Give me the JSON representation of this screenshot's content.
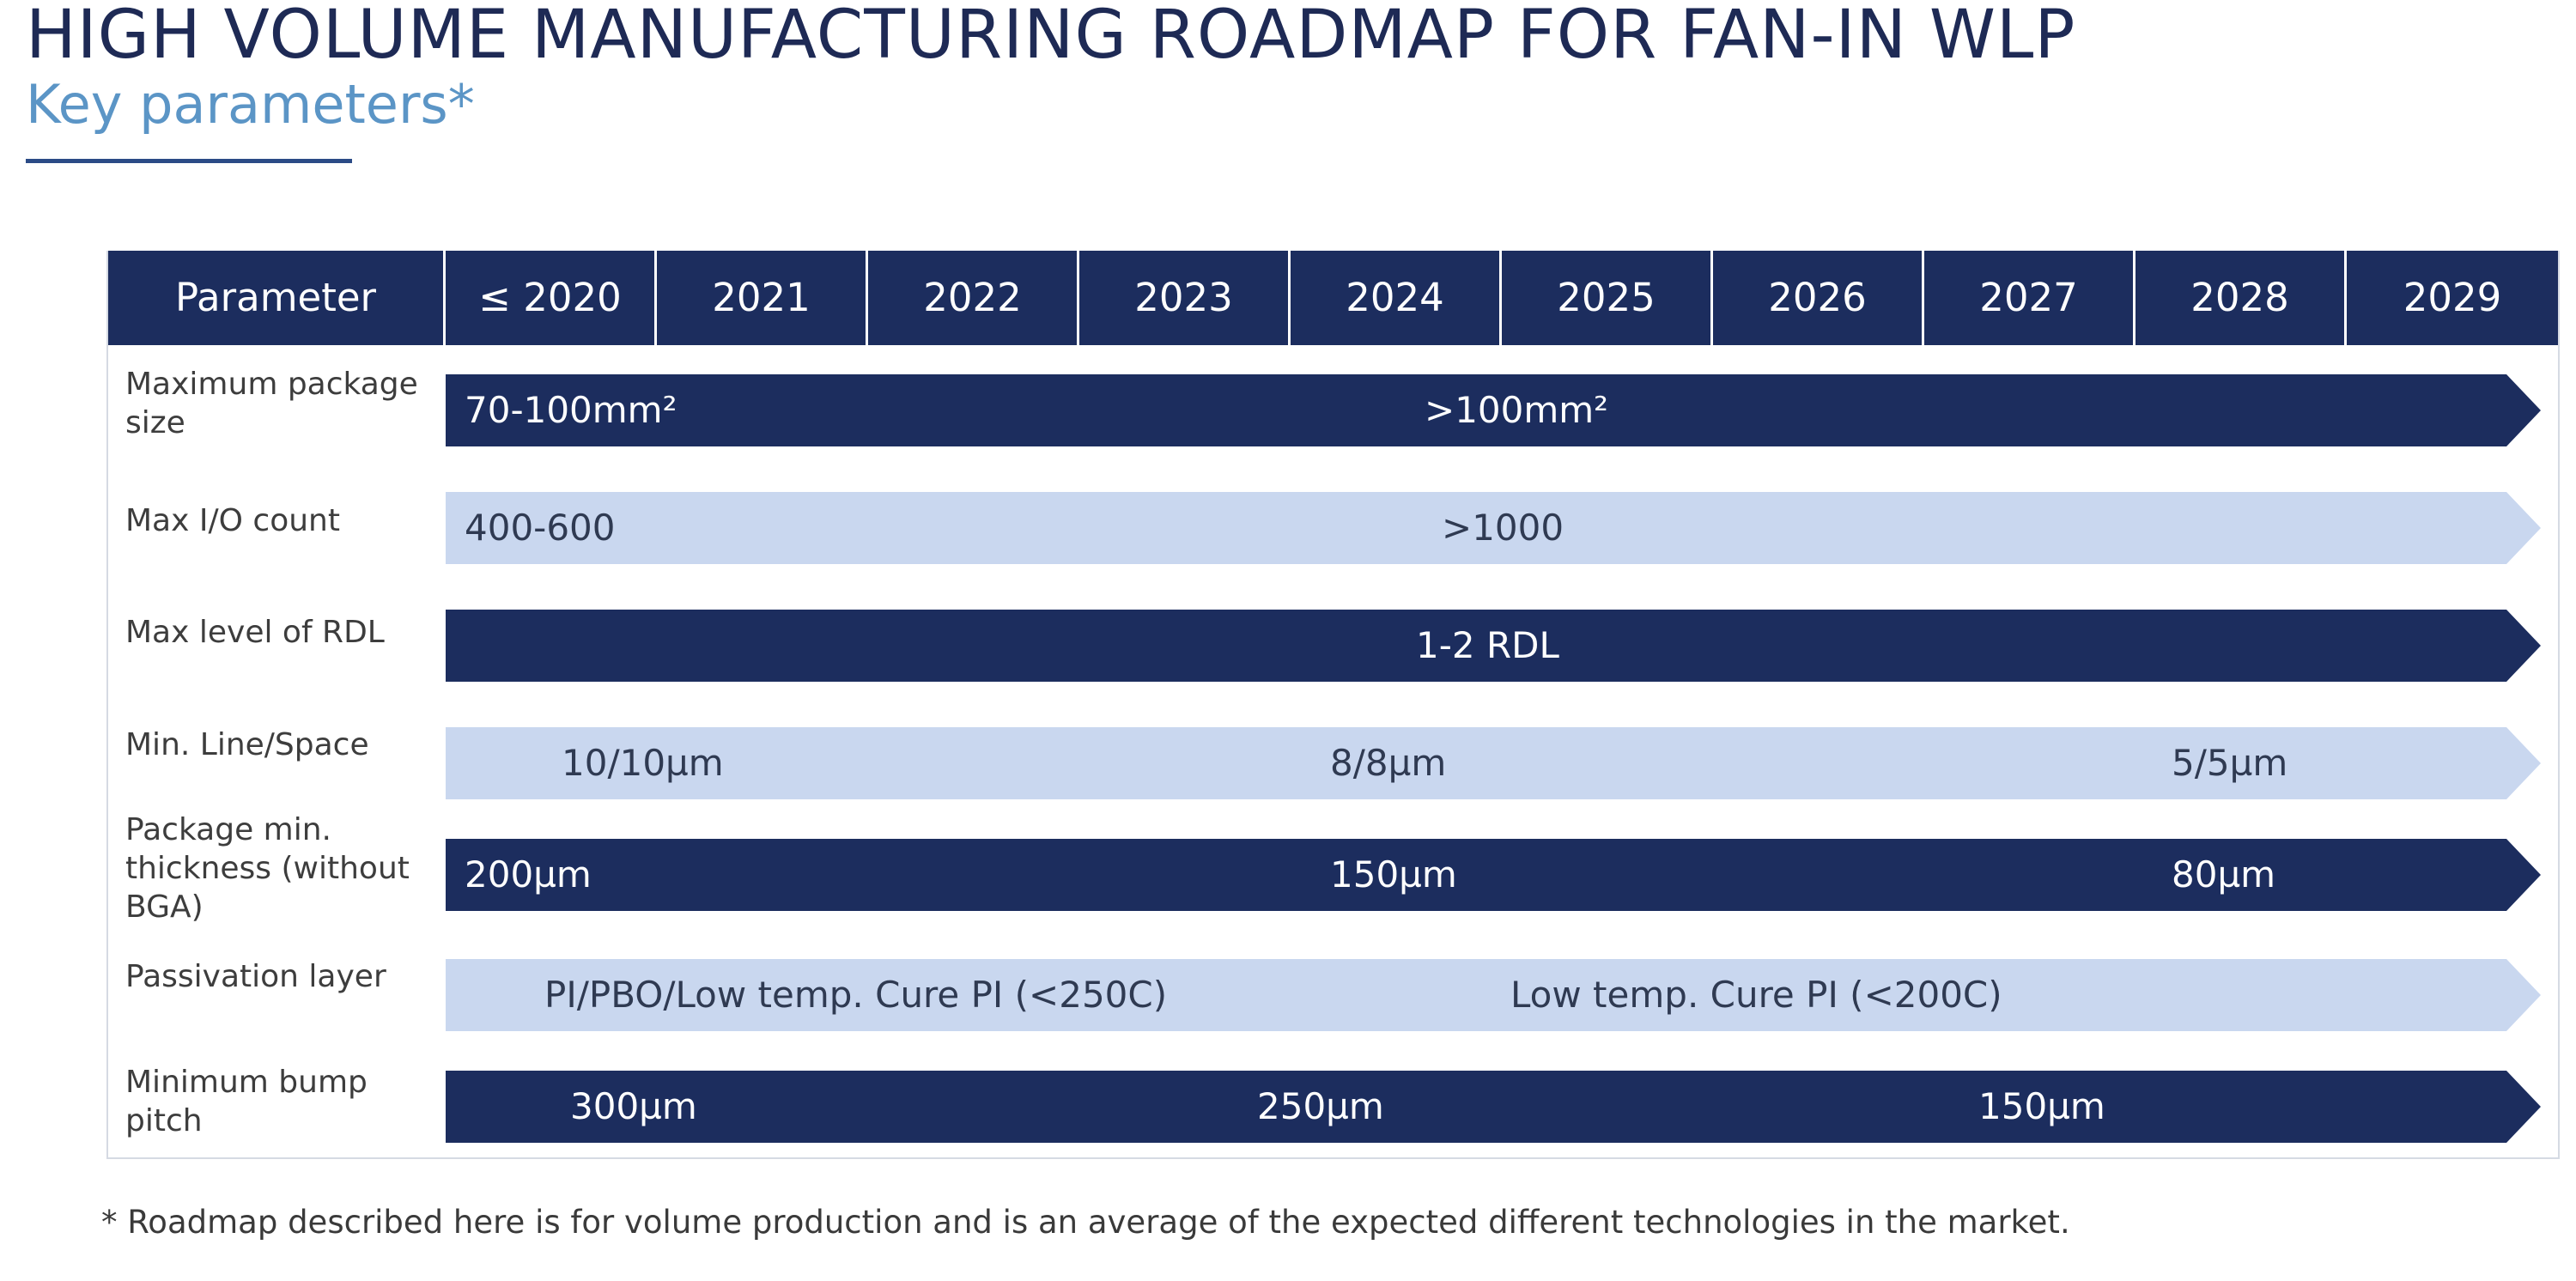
{
  "page": {
    "title": "HIGH VOLUME MANUFACTURING ROADMAP FOR FAN-IN WLP",
    "subtitle": "Key parameters*"
  },
  "table": {
    "header": {
      "parameter": "Parameter",
      "years": [
        "≤ 2020",
        "2021",
        "2022",
        "2023",
        "2024",
        "2025",
        "2026",
        "2027",
        "2028",
        "2029"
      ]
    },
    "rows": [
      {
        "label": "Maximum package size",
        "style": "dark",
        "values": [
          "70-100mm²",
          ">100mm²"
        ]
      },
      {
        "label": "Max I/O count",
        "style": "light",
        "values": [
          "400-600",
          ">1000"
        ]
      },
      {
        "label": "Max level of RDL",
        "style": "dark",
        "values": [
          "1-2 RDL"
        ]
      },
      {
        "label": "Min. Line/Space",
        "style": "light",
        "values": [
          "10/10µm",
          "8/8µm",
          "5/5µm"
        ]
      },
      {
        "label": "Package min. thickness (without BGA)",
        "style": "dark",
        "values": [
          "200µm",
          "150µm",
          "80µm"
        ]
      },
      {
        "label": "Passivation layer",
        "style": "light",
        "values": [
          "PI/PBO/Low temp. Cure PI (<250C)",
          "Low temp. Cure PI (<200C)"
        ]
      },
      {
        "label": "Minimum bump pitch",
        "style": "dark",
        "values": [
          "300µm",
          "250µm",
          "150µm"
        ]
      }
    ]
  },
  "footnote": "* Roadmap described here is for volume production and is an average of the expected different technologies in the market.",
  "colors": {
    "dark_bar": "#1c2d5e",
    "light_bar": "#c9d7ef",
    "title": "#1e2a55",
    "subtitle": "#5b95c6"
  }
}
